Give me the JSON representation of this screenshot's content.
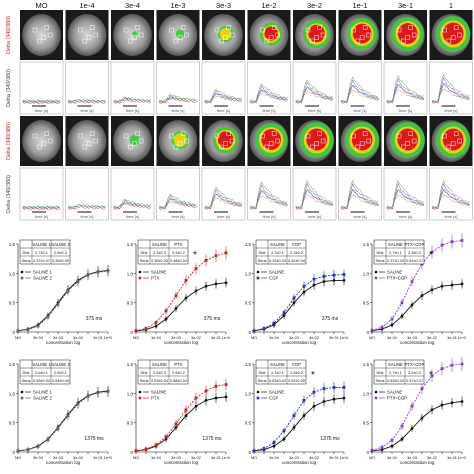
{
  "columns": [
    "MO",
    "1e-4",
    "3e-4",
    "1e-3",
    "3e-3",
    "1e-2",
    "3e-2",
    "1e-1",
    "3e-1",
    "1"
  ],
  "image_row_ylabel": "Delta (340/380)",
  "trace_row_ylabel": "Delta (340/380)",
  "trace_xlabel": "time [s]",
  "activation_levels": [
    [
      0,
      0.05,
      0.15,
      0.25,
      0.45,
      0.65,
      0.8,
      0.9,
      0.95,
      1.0
    ],
    [
      0,
      0.1,
      0.3,
      0.5,
      0.75,
      0.95,
      1.0,
      1.0,
      1.0,
      1.0
    ]
  ],
  "colors": {
    "low": "#8a8a8a",
    "mid": "#3ec83e",
    "high": "#e8d018",
    "peak": "#e01818",
    "saline": "#111111",
    "ptx": "#cc2222",
    "cgp": "#2233bb",
    "ptxcgp": "#8a3fc0"
  },
  "curves": [
    {
      "panel": "a",
      "treatment": "SALINE 2",
      "params": {
        "rows": [
          "Dist",
          "Sens"
        ],
        "c1": [
          "2.7±0.1",
          "0.37±0.07"
        ],
        "c2": [
          "2.8±0.3",
          "0.35±0.09"
        ]
      },
      "legend": [
        "SALINE 1",
        "SALINE 2"
      ],
      "duration": "375 ms",
      "significant": false
    },
    {
      "panel": "b",
      "treatment": "PTX",
      "params": {
        "rows": [
          "Dist",
          "Sens"
        ],
        "c1": [
          "2.3±0.3",
          "0.35±0.03"
        ],
        "c2": [
          "2.9±0.2",
          "0.48±0.04"
        ]
      },
      "legend": [
        "SALINE",
        "PTX"
      ],
      "duration": "375 ms",
      "significant": true
    },
    {
      "panel": "c",
      "treatment": "CGP",
      "params": {
        "rows": [
          "Dist",
          "Sens"
        ],
        "c1": [
          "2.2±0.1",
          "0.33±0.03"
        ],
        "c2": [
          "2.3±0.2",
          "0.42±0.04"
        ]
      },
      "legend": [
        "SALINE",
        "CGP"
      ],
      "duration": "375 ms",
      "significant": false
    },
    {
      "panel": "d",
      "treatment": "PTX+CGP",
      "params": {
        "rows": [
          "Dist",
          "Sens"
        ],
        "c1": [
          "2.7±0.1",
          "0.37±0.03"
        ],
        "c2": [
          "2.3±0.3",
          "0.61±0.07"
        ]
      },
      "legend": [
        "SALINE",
        "PTX+CGP"
      ],
      "duration": "",
      "significant": true
    },
    {
      "panel": "e",
      "treatment": "SALINE 2",
      "params": {
        "rows": [
          "Dist",
          "Sens"
        ],
        "c1": [
          "2.6±0.1",
          "0.53±0.04"
        ],
        "c2": [
          "2.6±0.1",
          "0.54±0.04"
        ]
      },
      "legend": [
        "SALINE 1",
        "SALINE 2"
      ],
      "duration": "1375 ms",
      "significant": false
    },
    {
      "panel": "f",
      "treatment": "PTX",
      "params": {
        "rows": [
          "Dist",
          "Sens"
        ],
        "c1": [
          "2.6±0.3",
          "0.53±0.04"
        ],
        "c2": [
          "2.6±0.2",
          "0.58±0.04"
        ]
      },
      "legend": [
        "SALINE",
        "PTX"
      ],
      "duration": "1375 ms",
      "significant": false
    },
    {
      "panel": "g",
      "treatment": "CGP",
      "params": {
        "rows": [
          "Dist",
          "Sens"
        ],
        "c1": [
          "2.1±0.1",
          "0.53±0.02"
        ],
        "c2": [
          "1.5±0.2",
          "0.52±0.05"
        ]
      },
      "legend": [
        "SALINE",
        "CGP"
      ],
      "duration": "1375 ms",
      "significant": true
    },
    {
      "panel": "h",
      "treatment": "PTX+CGP",
      "params": {
        "rows": [
          "Dist",
          "Sens"
        ],
        "c1": [
          "2.7±0.1",
          "0.53±0.04"
        ],
        "c2": [
          "2.2±0.3",
          "0.57±0.07"
        ]
      },
      "legend": [
        "SALINE",
        "PTX+CGP"
      ],
      "duration": "",
      "significant": true
    }
  ],
  "chart_data": {
    "type": "line",
    "xlabel": "concentration log",
    "ylabel": "",
    "categories": [
      "MO",
      "1e-04",
      "3e-04",
      "1e-03",
      "3e-03",
      "1e-02",
      "3e-02",
      "1e-01",
      "3e-01",
      "1e+0"
    ],
    "ylim": [
      0,
      1.5
    ],
    "yticks": [
      "0",
      "0.5",
      "1.0",
      "1.5"
    ],
    "panels": [
      {
        "series": [
          {
            "name": "SALINE 1",
            "values": [
              0.02,
              0.05,
              0.12,
              0.28,
              0.5,
              0.72,
              0.88,
              0.98,
              1.03,
              1.05
            ]
          },
          {
            "name": "SALINE 2",
            "values": [
              0.02,
              0.04,
              0.1,
              0.26,
              0.47,
              0.7,
              0.86,
              0.97,
              1.02,
              1.04
            ]
          }
        ]
      },
      {
        "series": [
          {
            "name": "SALINE",
            "values": [
              0.02,
              0.04,
              0.1,
              0.22,
              0.4,
              0.58,
              0.7,
              0.78,
              0.82,
              0.84
            ]
          },
          {
            "name": "PTX",
            "values": [
              0.02,
              0.06,
              0.16,
              0.36,
              0.62,
              0.88,
              1.08,
              1.22,
              1.3,
              1.35
            ]
          }
        ]
      },
      {
        "series": [
          {
            "name": "SALINE",
            "values": [
              0.02,
              0.05,
              0.12,
              0.28,
              0.5,
              0.68,
              0.8,
              0.86,
              0.88,
              0.88
            ]
          },
          {
            "name": "CGP",
            "values": [
              0.02,
              0.06,
              0.15,
              0.33,
              0.58,
              0.78,
              0.9,
              0.95,
              0.97,
              0.98
            ]
          }
        ]
      },
      {
        "series": [
          {
            "name": "SALINE",
            "values": [
              0.02,
              0.05,
              0.12,
              0.27,
              0.46,
              0.62,
              0.72,
              0.78,
              0.8,
              0.82
            ]
          },
          {
            "name": "PTX+CGP",
            "values": [
              0.03,
              0.08,
              0.22,
              0.5,
              0.86,
              1.16,
              1.36,
              1.48,
              1.54,
              1.56
            ]
          }
        ]
      },
      {
        "series": [
          {
            "name": "SALINE 1",
            "values": [
              0.02,
              0.04,
              0.1,
              0.22,
              0.42,
              0.64,
              0.84,
              0.96,
              1.02,
              1.04
            ]
          },
          {
            "name": "SALINE 2",
            "values": [
              0.02,
              0.04,
              0.09,
              0.21,
              0.4,
              0.62,
              0.82,
              0.95,
              1.01,
              1.03
            ]
          }
        ]
      },
      {
        "series": [
          {
            "name": "SALINE",
            "values": [
              0.02,
              0.04,
              0.1,
              0.22,
              0.42,
              0.62,
              0.78,
              0.88,
              0.92,
              0.94
            ]
          },
          {
            "name": "PTX",
            "values": [
              0.02,
              0.05,
              0.12,
              0.26,
              0.48,
              0.72,
              0.92,
              1.04,
              1.12,
              1.15
            ]
          }
        ]
      },
      {
        "series": [
          {
            "name": "SALINE",
            "values": [
              0.02,
              0.04,
              0.1,
              0.22,
              0.42,
              0.62,
              0.78,
              0.86,
              0.9,
              0.92
            ]
          },
          {
            "name": "CGP",
            "values": [
              0.02,
              0.06,
              0.16,
              0.36,
              0.62,
              0.88,
              1.02,
              1.08,
              1.1,
              1.1
            ]
          }
        ]
      },
      {
        "series": [
          {
            "name": "SALINE",
            "values": [
              0.02,
              0.04,
              0.1,
              0.22,
              0.4,
              0.58,
              0.72,
              0.8,
              0.84,
              0.86
            ]
          },
          {
            "name": "PTX+CGP",
            "values": [
              0.03,
              0.08,
              0.2,
              0.44,
              0.78,
              1.08,
              1.3,
              1.42,
              1.48,
              1.5
            ]
          }
        ]
      }
    ]
  }
}
